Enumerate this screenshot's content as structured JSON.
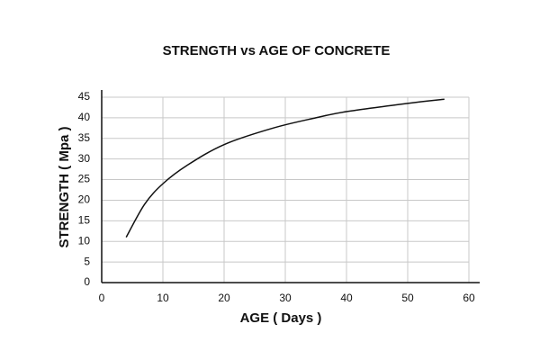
{
  "chart_data": {
    "type": "line",
    "title": "STRENGTH vs AGE OF CONCRETE",
    "x_label": "AGE ( Days )",
    "y_label": "STRENGTH ( Mpa )",
    "x": [
      4,
      7,
      10,
      14,
      20,
      28,
      35,
      40,
      50,
      56
    ],
    "series": [
      {
        "name": "Strength",
        "color": "#111111",
        "values": [
          11,
          19,
          24,
          28.5,
          33.5,
          37.5,
          40,
          41.5,
          43.5,
          44.5
        ]
      }
    ],
    "xlim": [
      0,
      60
    ],
    "xticks": [
      0,
      10,
      20,
      30,
      40,
      50,
      60
    ],
    "ylim": [
      0,
      45
    ],
    "yticks": [
      0,
      5,
      10,
      15,
      20,
      25,
      30,
      35,
      40,
      45
    ],
    "grid": true
  }
}
